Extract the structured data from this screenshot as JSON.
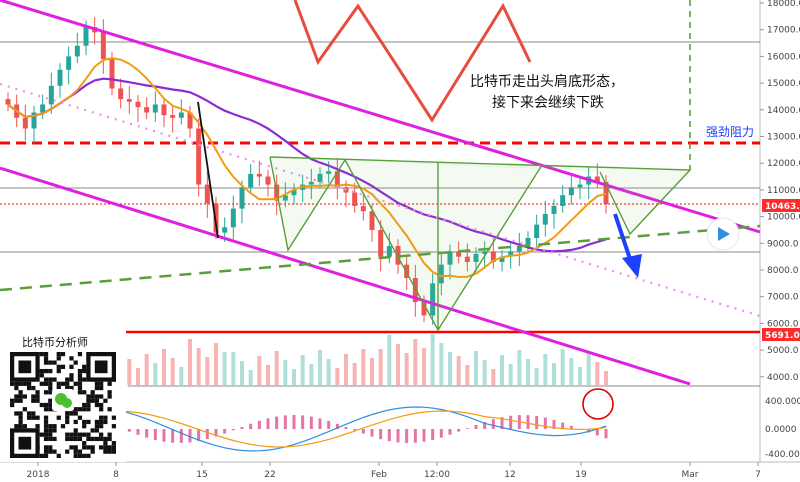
{
  "chart_data": {
    "type": "candlestick",
    "y_axis": {
      "ticks": [
        4000,
        5000,
        6000,
        7000,
        8000,
        9000,
        10000,
        11000,
        12000,
        13000,
        14000,
        15000,
        16000,
        17000,
        18000
      ],
      "labels": [
        "4000.0",
        "5000.0",
        "6000.0",
        "7000.0",
        "8000.0",
        "9000.0",
        "10000.0",
        "11000.0",
        "12000.0",
        "13000.0",
        "14000.0",
        "15000.0",
        "16000.0",
        "17000.0",
        "18000.0"
      ],
      "range": [
        4000,
        18000
      ]
    },
    "osc_axis": {
      "ticks": [
        400,
        0,
        -400
      ],
      "labels": [
        "400.000",
        "0.0000",
        "-400.000"
      ]
    },
    "x_axis": {
      "labels": [
        "2018",
        "8",
        "15",
        "22",
        "Feb",
        "12:00",
        "12",
        "19",
        "Mar",
        "7"
      ]
    },
    "current_price_label": "10463.0",
    "support_price_label": "5691.0",
    "annotation_lines": [
      "比特币走出头肩底形态，",
      "接下来会继续下跌"
    ],
    "resistance_label": "强劲阻力",
    "qr_title": "比特币分析师",
    "closes": [
      14200,
      13700,
      13300,
      13900,
      14200,
      14900,
      15500,
      16000,
      16400,
      17100,
      16900,
      15900,
      14800,
      14400,
      14300,
      14100,
      13900,
      14200,
      13800,
      13700,
      13900,
      13300,
      11200,
      10500,
      9400,
      9600,
      10300,
      11100,
      11600,
      11500,
      11200,
      10600,
      10800,
      11000,
      11200,
      11300,
      11600,
      11700,
      11100,
      10900,
      10400,
      10200,
      9500,
      8500,
      8900,
      8200,
      7700,
      6800,
      6300,
      7500,
      8200,
      8700,
      8500,
      8300,
      8600,
      8700,
      8300,
      8500,
      8700,
      8900,
      9200,
      9700,
      10100,
      10400,
      10800,
      11100,
      11200,
      11500,
      11300,
      10463
    ],
    "colors": {
      "up": "#26a69a",
      "down": "#ef5350",
      "channel": "#e020e0",
      "resistance_line": "#ff0000",
      "ma_slow": "#8b2bd6",
      "ma_fast": "#f39c12",
      "neckline": "#5a9e3a",
      "zigzag": "#e74c3c",
      "arrow": "#1e40ff",
      "price_box": "#ff0000"
    }
  }
}
